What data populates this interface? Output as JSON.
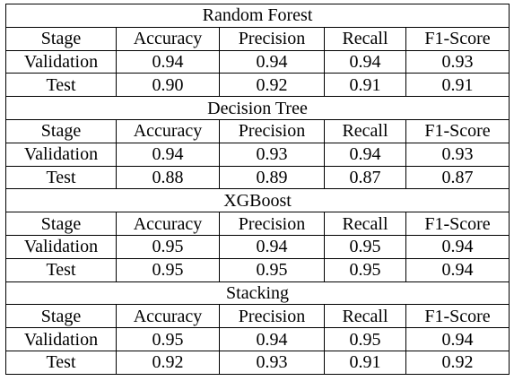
{
  "headers": [
    "Stage",
    "Accuracy",
    "Precision",
    "Recall",
    "F1-Score"
  ],
  "models": [
    {
      "name": "Random Forest",
      "rows": [
        [
          "Validation",
          "0.94",
          "0.94",
          "0.94",
          "0.93"
        ],
        [
          "Test",
          "0.90",
          "0.92",
          "0.91",
          "0.91"
        ]
      ]
    },
    {
      "name": "Decision Tree",
      "rows": [
        [
          "Validation",
          "0.94",
          "0.93",
          "0.94",
          "0.93"
        ],
        [
          "Test",
          "0.88",
          "0.89",
          "0.87",
          "0.87"
        ]
      ]
    },
    {
      "name": "XGBoost",
      "rows": [
        [
          "Validation",
          "0.95",
          "0.94",
          "0.95",
          "0.94"
        ],
        [
          "Test",
          "0.95",
          "0.95",
          "0.95",
          "0.94"
        ]
      ]
    },
    {
      "name": "Stacking",
      "rows": [
        [
          "Validation",
          "0.95",
          "0.94",
          "0.95",
          "0.94"
        ],
        [
          "Test",
          "0.92",
          "0.93",
          "0.91",
          "0.92"
        ]
      ]
    }
  ]
}
